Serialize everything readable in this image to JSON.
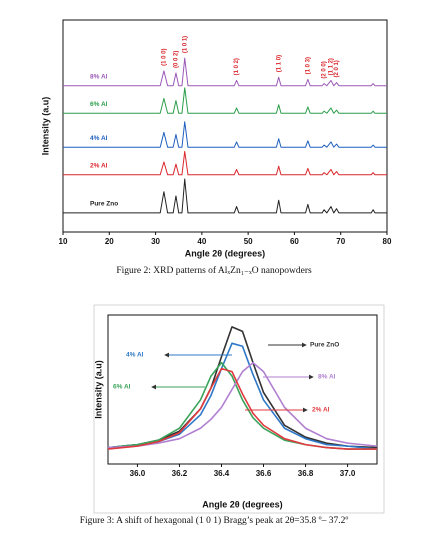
{
  "chart_data": [
    {
      "type": "line",
      "caption": "Figure 2: XRD patterns of AlₓZn₁₋ₓO nanopowders",
      "xlabel": "Angle 2θ (degrees)",
      "ylabel": "Intensity (a.u)",
      "xlim": [
        10,
        80
      ],
      "xticks": [
        10,
        20,
        30,
        40,
        50,
        60,
        70,
        80
      ],
      "ylim": [
        0,
        100
      ],
      "x": [
        10,
        31,
        31.8,
        32.6,
        33.8,
        34.4,
        35.0,
        35.7,
        36.3,
        37.0,
        47.0,
        47.5,
        48.0,
        56.1,
        56.6,
        57.1,
        62.4,
        62.9,
        63.4,
        66.0,
        66.4,
        67.0,
        67.9,
        68.5,
        69.1,
        69.6,
        76.6,
        77.0,
        77.4,
        80
      ],
      "series": [
        {
          "name": "Pure Zno",
          "color": "#222222",
          "values": [
            9,
            9,
            19,
            9,
            9,
            17,
            9,
            9,
            25,
            9,
            9,
            12,
            9,
            9,
            15,
            9,
            9,
            13,
            9,
            9,
            10.5,
            9,
            12,
            9,
            11,
            9,
            9,
            10.5,
            9,
            9
          ]
        },
        {
          "name": "2% Al",
          "color": "#d9262b",
          "values": [
            27,
            27,
            33,
            27,
            27,
            32,
            27,
            27,
            38,
            27,
            27,
            29.5,
            27,
            27,
            31,
            27,
            27,
            30,
            27,
            27,
            28,
            27,
            29.5,
            27,
            28.5,
            27,
            27,
            28,
            27,
            27
          ]
        },
        {
          "name": "4% Al",
          "color": "#1f5fbf",
          "values": [
            40,
            40,
            47,
            40,
            40,
            46,
            40,
            40,
            52,
            40,
            40,
            42.5,
            40,
            40,
            44,
            40,
            40,
            43,
            40,
            40,
            41,
            40,
            42.5,
            40,
            41.5,
            40,
            40,
            41,
            40,
            40
          ]
        },
        {
          "name": "6% Al",
          "color": "#2a9d4a",
          "values": [
            56,
            56,
            63,
            56,
            56,
            62,
            56,
            56,
            68,
            56,
            56,
            58.5,
            56,
            56,
            60,
            56,
            56,
            59,
            56,
            56,
            57,
            56,
            58.5,
            56,
            57.5,
            56,
            56,
            57,
            56,
            56
          ]
        },
        {
          "name": "8% Al",
          "color": "#9b59b6",
          "values": [
            69,
            69,
            76,
            69,
            69,
            75,
            69,
            69,
            82,
            69,
            69,
            71.5,
            69,
            69,
            73,
            69,
            69,
            72,
            69,
            69,
            70,
            69,
            71.5,
            69,
            70.5,
            69,
            69,
            70,
            69,
            69
          ]
        }
      ],
      "annotations": [
        {
          "text": "(1 0 0)",
          "x": 31.8
        },
        {
          "text": "(0 0 2)",
          "x": 34.4
        },
        {
          "text": "(1 0 1)",
          "x": 36.3
        },
        {
          "text": "(1 0 2)",
          "x": 47.5
        },
        {
          "text": "(1 1 0)",
          "x": 56.6
        },
        {
          "text": "(1 0 3)",
          "x": 62.9
        },
        {
          "text": "(2 0 0)",
          "x": 66.4
        },
        {
          "text": "(1 1 2)",
          "x": 67.9
        },
        {
          "text": "(2 0 1)",
          "x": 69.1
        }
      ]
    },
    {
      "type": "line",
      "caption": "Figure 3: A shift of hexagonal (1 0 1) Bragg’s peak at 2θ=35.8 º– 37.2º",
      "xlabel": "Angle 2θ (degrees)",
      "ylabel": "Intensity (a.u)",
      "xlim": [
        35.86,
        37.14
      ],
      "xticks": [
        {
          "value": 36,
          "label": "36.0"
        },
        36.2,
        36.4,
        36.6,
        36.8,
        {
          "value": 37,
          "label": "37.0"
        }
      ],
      "ylim": [
        0,
        100
      ],
      "x": [
        35.86,
        36.0,
        36.1,
        36.2,
        36.3,
        36.35,
        36.4,
        36.45,
        36.5,
        36.55,
        36.6,
        36.7,
        36.8,
        36.9,
        37.0,
        37.14
      ],
      "series": [
        {
          "name": "Pure ZnO",
          "color": "#333333",
          "values": [
            11,
            13,
            16,
            22,
            37,
            51,
            72,
            92,
            89,
            68,
            48,
            26,
            18,
            14,
            12,
            11
          ]
        },
        {
          "name": "4% Al",
          "color": "#2e78c7",
          "values": [
            11,
            13,
            15,
            20,
            33,
            46,
            64,
            81,
            79,
            60,
            43,
            24,
            17,
            13,
            12,
            10
          ]
        },
        {
          "name": "6% Al",
          "color": "#3aa35a",
          "values": [
            11,
            13,
            16,
            24,
            43,
            59,
            68,
            59,
            43,
            31,
            24,
            16,
            13,
            11,
            10,
            10
          ]
        },
        {
          "name": "8% Al",
          "color": "#b07fd0",
          "values": [
            11,
            12,
            14,
            17,
            24,
            30,
            38,
            50,
            62,
            68,
            62,
            38,
            24,
            17,
            14,
            12
          ]
        },
        {
          "name": "2% Al",
          "color": "#e0393e",
          "values": [
            10,
            12,
            15,
            21,
            37,
            51,
            64,
            62,
            47,
            34,
            26,
            17,
            13,
            11,
            10,
            10
          ]
        }
      ]
    }
  ]
}
